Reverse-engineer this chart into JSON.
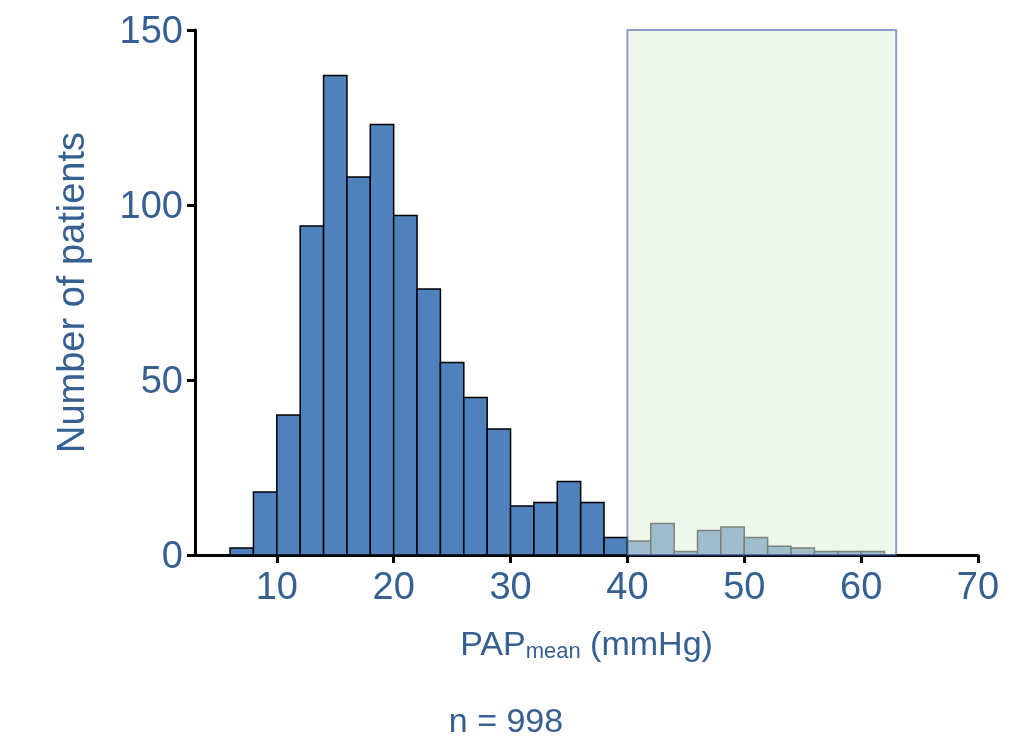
{
  "chart_data": {
    "type": "histogram",
    "xlabel": "PAP$_{mean}$ (mmHg)",
    "ylabel": "Number of patients",
    "annotations": [
      "n = 998"
    ],
    "bins": [
      6,
      8,
      10,
      12,
      14,
      16,
      18,
      20,
      22,
      24,
      26,
      28,
      30,
      32,
      34,
      36,
      38,
      40,
      42,
      44,
      46,
      48,
      50,
      52,
      54,
      56,
      58,
      60,
      62
    ],
    "values": [
      2,
      18,
      40,
      94,
      137,
      108,
      123,
      97,
      76,
      55,
      45,
      36,
      14,
      15,
      21,
      15,
      5,
      4,
      9,
      1,
      7,
      8,
      5,
      2.5,
      2,
      1,
      1,
      1
    ],
    "color": "#4f81bd",
    "xlim": [
      3,
      70
    ],
    "xticks": [
      10,
      20,
      30,
      40,
      50,
      60,
      70
    ],
    "ylim": [
      0,
      150
    ],
    "yticks": [
      0,
      50,
      100,
      150
    ],
    "bands": [
      {
        "axis": "x",
        "from": 40,
        "to": 63,
        "color": "#e2efda"
      }
    ],
    "grid": false,
    "legend": false
  }
}
